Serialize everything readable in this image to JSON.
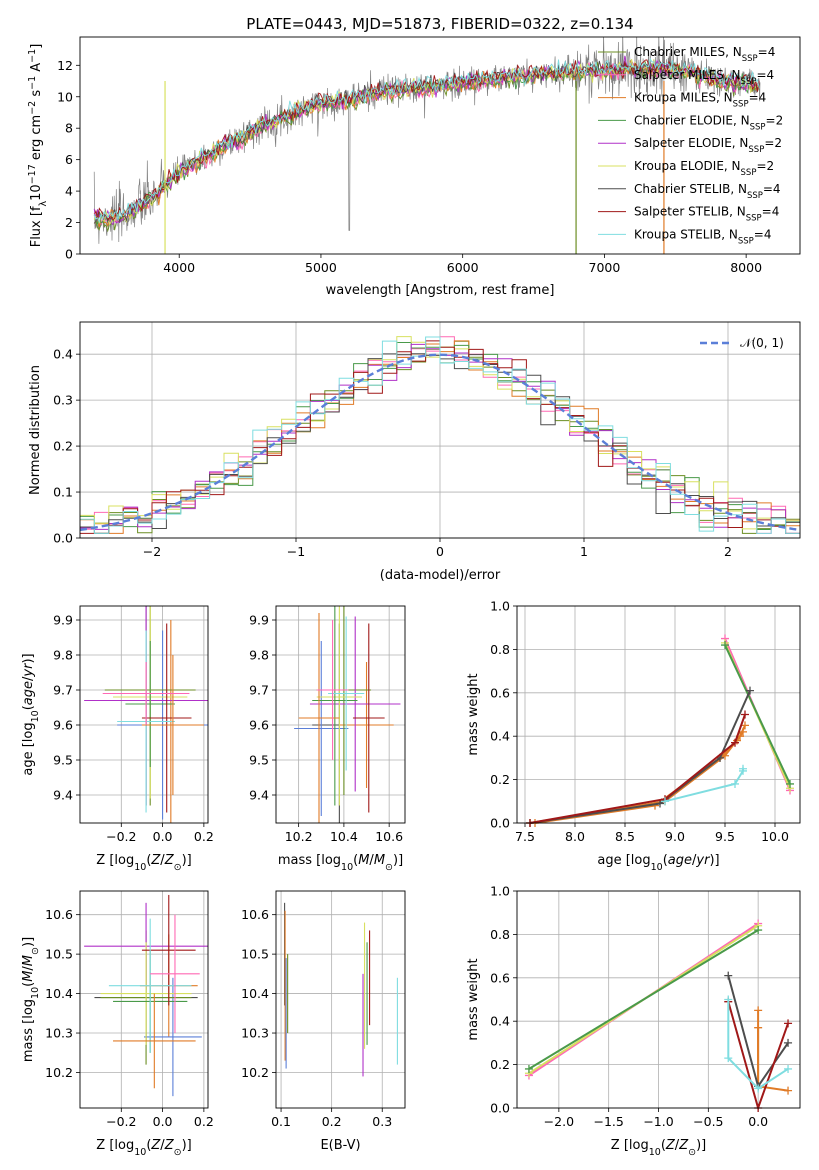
{
  "figure": {
    "title": "PLATE=0443, MJD=51873, FIBERID=0322, z=0.134"
  },
  "models": [
    {
      "name": "Chabrier MILES",
      "nssp": "4",
      "color": "#6b8e23"
    },
    {
      "name": "Salpeter MILES",
      "nssp": "4",
      "color": "#ff69b4"
    },
    {
      "name": "Kroupa MILES",
      "nssp": "4",
      "color": "#e07b27"
    },
    {
      "name": "Chabrier ELODIE",
      "nssp": "2",
      "color": "#4a9a4a"
    },
    {
      "name": "Salpeter ELODIE",
      "nssp": "2",
      "color": "#b030c8"
    },
    {
      "name": "Kroupa ELODIE",
      "nssp": "2",
      "color": "#d8e060"
    },
    {
      "name": "Chabrier STELIB",
      "nssp": "4",
      "color": "#4d4d4d"
    },
    {
      "name": "Salpeter STELIB",
      "nssp": "4",
      "color": "#a01818"
    },
    {
      "name": "Kroupa STELIB",
      "nssp": "4",
      "color": "#7fdde0"
    }
  ],
  "chart_data": [
    {
      "id": "spectrum",
      "type": "line",
      "xlabel": "wavelength [Angstrom, rest frame]",
      "ylabel": "Flux [f_λ 10^-17 erg cm^-2 s^-1 A^-1]",
      "xlim": [
        3300,
        8380
      ],
      "ylim": [
        0,
        13.8
      ],
      "xticks": [
        4000,
        5000,
        6000,
        7000,
        8000
      ],
      "yticks": [
        0,
        2,
        4,
        6,
        8,
        10,
        12
      ],
      "data_color": "#808080",
      "model_points": {
        "x": [
          3400,
          3600,
          3800,
          4000,
          4200,
          4400,
          4600,
          4800,
          5000,
          5200,
          5400,
          5600,
          5800,
          6000,
          6200,
          6400,
          6600,
          6800,
          7000,
          7200,
          7400,
          7600,
          7800,
          8000,
          8100
        ],
        "y": [
          2.2,
          2.4,
          3.5,
          5.2,
          6.2,
          7.3,
          8.2,
          8.9,
          9.6,
          9.8,
          10.3,
          10.5,
          10.6,
          10.9,
          11.1,
          11.3,
          11.5,
          11.6,
          11.7,
          11.8,
          11.8,
          11.6,
          11.0,
          10.8,
          10.6
        ]
      },
      "grid": false,
      "legend": "upper right"
    },
    {
      "id": "residuals",
      "type": "histogram",
      "xlabel": "(data-model)/error",
      "ylabel": "Normed distribution",
      "xlim": [
        -2.5,
        2.5
      ],
      "ylim": [
        0,
        0.47
      ],
      "xticks": [
        -2,
        -1,
        0,
        1,
        2
      ],
      "yticks": [
        0.0,
        0.1,
        0.2,
        0.3,
        0.4
      ],
      "reference_curve": {
        "name": "𝒩(0, 1)",
        "color": "#5b7fd8",
        "style": "dashed"
      },
      "bin_width": 0.1,
      "bins_from": -2.5,
      "grid": true,
      "legend": "upper right"
    },
    {
      "id": "age-vs-Z",
      "type": "errorbar",
      "xlabel": "Z [log10(Z/Z⊙)]",
      "ylabel": "age  [log10(age/yr)]",
      "xlim": [
        -0.4,
        0.22
      ],
      "ylim": [
        9.32,
        9.94
      ],
      "xticks": [
        -0.2,
        0.0,
        0.2
      ],
      "yticks": [
        9.4,
        9.5,
        9.6,
        9.7,
        9.8,
        9.9
      ],
      "points": [
        {
          "x": -0.08,
          "xerr": 0.25,
          "y": 9.67,
          "yerr": 0.3
        },
        {
          "x": 0.04,
          "xerr": 0.12,
          "y": 9.6,
          "yerr": 0.3
        },
        {
          "x": 0.0,
          "xerr": 0.22,
          "y": 9.6,
          "yerr": 0.27
        },
        {
          "x": -0.06,
          "xerr": 0.22,
          "y": 9.7,
          "yerr": 0.33
        },
        {
          "x": -0.08,
          "xerr": 0.3,
          "y": 9.67,
          "yerr": 0.3
        },
        {
          "x": -0.06,
          "xerr": 0.18,
          "y": 9.68,
          "yerr": 0.29
        },
        {
          "x": -0.06,
          "xerr": 0.12,
          "y": 9.66,
          "yerr": 0.18
        },
        {
          "x": 0.02,
          "xerr": 0.12,
          "y": 9.62,
          "yerr": 0.27
        },
        {
          "x": -0.08,
          "xerr": 0.14,
          "y": 9.61,
          "yerr": 0.26
        },
        {
          "x": 0.05,
          "xerr": 0.15,
          "y": 9.6,
          "yerr": 0.2
        },
        {
          "x": -0.08,
          "xerr": 0.21,
          "y": 9.69,
          "yerr": 0.09
        }
      ],
      "grid": true
    },
    {
      "id": "age-vs-mass",
      "type": "errorbar",
      "xlabel": "mass [log10(M/M⊙)]",
      "ylabel": "",
      "xlim": [
        10.1,
        10.67
      ],
      "ylim": [
        9.32,
        9.94
      ],
      "xticks": [
        10.2,
        10.4,
        10.6
      ],
      "yticks": [
        9.4,
        9.5,
        9.6,
        9.7,
        9.8,
        9.9
      ],
      "points": [
        {
          "x": 10.38,
          "xerr": 0.12,
          "y": 9.6,
          "yerr": 0.29
        },
        {
          "x": 10.5,
          "xerr": 0.12,
          "y": 9.6,
          "yerr": 0.18
        },
        {
          "x": 10.3,
          "xerr": 0.12,
          "y": 9.59,
          "yerr": 0.25
        },
        {
          "x": 10.4,
          "xerr": 0.12,
          "y": 9.7,
          "yerr": 0.3
        },
        {
          "x": 10.45,
          "xerr": 0.2,
          "y": 9.66,
          "yerr": 0.25
        },
        {
          "x": 10.38,
          "xerr": 0.1,
          "y": 9.68,
          "yerr": 0.31
        },
        {
          "x": 10.36,
          "xerr": 0.1,
          "y": 9.67,
          "yerr": 0.3
        },
        {
          "x": 10.51,
          "xerr": 0.07,
          "y": 9.62,
          "yerr": 0.27
        },
        {
          "x": 10.41,
          "xerr": 0.08,
          "y": 9.69,
          "yerr": 0.22
        },
        {
          "x": 10.29,
          "xerr": 0.09,
          "y": 9.62,
          "yerr": 0.3
        },
        {
          "x": 10.35,
          "xerr": 0.07,
          "y": 9.7,
          "yerr": 0.2
        }
      ],
      "grid": true
    },
    {
      "id": "mass-vs-Z",
      "type": "errorbar",
      "xlabel": "Z [log10(Z/Z⊙)]",
      "ylabel": "mass [log10(M/M⊙)]",
      "xlim": [
        -0.4,
        0.22
      ],
      "ylim": [
        10.11,
        10.66
      ],
      "xticks": [
        -0.2,
        0.0,
        0.2
      ],
      "yticks": [
        10.2,
        10.3,
        10.4,
        10.5,
        10.6
      ],
      "points": [
        {
          "x": -0.08,
          "xerr": 0.25,
          "y": 10.39,
          "yerr": 0.12
        },
        {
          "x": 0.03,
          "xerr": 0.14,
          "y": 10.42,
          "yerr": 0.13
        },
        {
          "x": 0.05,
          "xerr": 0.14,
          "y": 10.29,
          "yerr": 0.15
        },
        {
          "x": -0.08,
          "xerr": 0.22,
          "y": 10.39,
          "yerr": 0.17
        },
        {
          "x": -0.08,
          "xerr": 0.3,
          "y": 10.52,
          "yerr": 0.11
        },
        {
          "x": -0.08,
          "xerr": 0.22,
          "y": 10.4,
          "yerr": 0.13
        },
        {
          "x": -0.06,
          "xerr": 0.18,
          "y": 10.38,
          "yerr": 0.13
        },
        {
          "x": 0.03,
          "xerr": 0.13,
          "y": 10.51,
          "yerr": 0.14
        },
        {
          "x": -0.06,
          "xerr": 0.2,
          "y": 10.42,
          "yerr": 0.17
        },
        {
          "x": -0.04,
          "xerr": 0.2,
          "y": 10.28,
          "yerr": 0.12
        },
        {
          "x": 0.06,
          "xerr": 0.12,
          "y": 10.45,
          "yerr": 0.15
        }
      ],
      "grid": true
    },
    {
      "id": "mass-vs-ebv",
      "type": "errorbar",
      "xlabel": "E(B-V)",
      "ylabel": "",
      "xlim": [
        0.09,
        0.345
      ],
      "ylim": [
        10.11,
        10.66
      ],
      "xticks": [
        0.1,
        0.2,
        0.3
      ],
      "yticks": [
        10.2,
        10.3,
        10.4,
        10.5,
        10.6
      ],
      "points": [
        {
          "x": 0.107,
          "y": 10.5,
          "yerr": 0.13
        },
        {
          "x": 0.108,
          "y": 10.42,
          "yerr": 0.19
        },
        {
          "x": 0.11,
          "y": 10.35,
          "yerr": 0.14
        },
        {
          "x": 0.113,
          "y": 10.4,
          "yerr": 0.1
        },
        {
          "x": 0.262,
          "y": 10.32,
          "yerr": 0.13
        },
        {
          "x": 0.265,
          "y": 10.42,
          "yerr": 0.16
        },
        {
          "x": 0.27,
          "y": 10.4,
          "yerr": 0.13
        },
        {
          "x": 0.275,
          "y": 10.44,
          "yerr": 0.12
        },
        {
          "x": 0.33,
          "y": 10.33,
          "yerr": 0.11
        }
      ],
      "grid": true
    },
    {
      "id": "weight-vs-age",
      "type": "line",
      "xlabel": "age  [log10(age/yr)]",
      "ylabel": "mass weight",
      "xlim": [
        7.42,
        10.25
      ],
      "ylim": [
        0,
        1.0
      ],
      "xticks": [
        7.5,
        8.0,
        8.5,
        9.0,
        9.5,
        10.0
      ],
      "yticks": [
        0.0,
        0.2,
        0.4,
        0.6,
        0.8,
        1.0
      ],
      "series": [
        {
          "x": [
            9.5,
            10.15
          ],
          "y": [
            0.85,
            0.15
          ]
        },
        {
          "x": [
            9.5,
            10.15
          ],
          "y": [
            0.83,
            0.16
          ]
        },
        {
          "x": [
            9.5,
            10.15
          ],
          "y": [
            0.82,
            0.18
          ]
        },
        {
          "x": [
            7.55,
            8.9,
            9.5,
            9.65,
            9.7
          ],
          "y": [
            0.0,
            0.1,
            0.31,
            0.4,
            0.45
          ]
        },
        {
          "x": [
            7.6,
            8.8,
            9.45,
            9.62,
            9.68
          ],
          "y": [
            0.0,
            0.08,
            0.3,
            0.38,
            0.42
          ]
        },
        {
          "x": [
            7.55,
            8.85,
            9.45,
            9.75
          ],
          "y": [
            0.0,
            0.09,
            0.3,
            0.61
          ]
        },
        {
          "x": [
            7.55,
            8.9,
            9.6,
            9.7
          ],
          "y": [
            0.0,
            0.11,
            0.37,
            0.5
          ]
        },
        {
          "x": [
            8.9,
            9.6,
            9.68,
            9.68
          ],
          "y": [
            0.1,
            0.18,
            0.24,
            0.25
          ]
        }
      ],
      "grid": true
    },
    {
      "id": "weight-vs-Z",
      "type": "line",
      "xlabel": "Z [log10(Z/Z⊙)]",
      "ylabel": "mass weight",
      "xlim": [
        -2.42,
        0.42
      ],
      "ylim": [
        0,
        1.0
      ],
      "xticks": [
        -2.0,
        -1.5,
        -1.0,
        -0.5,
        0.0
      ],
      "yticks": [
        0.0,
        0.2,
        0.4,
        0.6,
        0.8,
        1.0
      ],
      "series": [
        {
          "x": [
            -2.3,
            0.0
          ],
          "y": [
            0.15,
            0.85
          ]
        },
        {
          "x": [
            -2.3,
            0.0
          ],
          "y": [
            0.16,
            0.84
          ]
        },
        {
          "x": [
            -2.3,
            0.0
          ],
          "y": [
            0.18,
            0.82
          ]
        },
        {
          "x": [
            0.0,
            0.0,
            0.3
          ],
          "y": [
            0.45,
            0.1,
            0.08
          ]
        },
        {
          "x": [
            0.0,
            0.0
          ],
          "y": [
            0.37,
            0.1
          ]
        },
        {
          "x": [
            -0.3,
            0.0,
            0.3
          ],
          "y": [
            0.61,
            0.1,
            0.3
          ]
        },
        {
          "x": [
            -0.3,
            0.0,
            0.3
          ],
          "y": [
            0.49,
            0.0,
            0.39
          ]
        },
        {
          "x": [
            -0.3,
            -0.3,
            0.0,
            0.3
          ],
          "y": [
            0.5,
            0.23,
            0.09,
            0.18
          ]
        }
      ],
      "grid": true
    }
  ]
}
